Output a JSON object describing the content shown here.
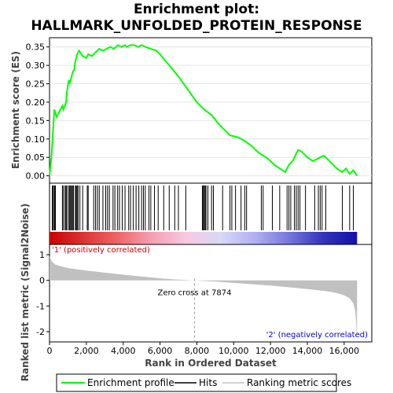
{
  "chart_data": {
    "type": "line",
    "title": "Enrichment plot:",
    "subtitle": "HALLMARK_UNFOLDED_PROTEIN_RESPONSE",
    "top_panel": {
      "ylabel": "Enrichment score (ES)",
      "ylim": [
        -0.02,
        0.375
      ],
      "yticks": [
        "0.00",
        "0.05",
        "0.10",
        "0.15",
        "0.20",
        "0.25",
        "0.30",
        "0.35"
      ],
      "ytick_values": [
        0.0,
        0.05,
        0.1,
        0.15,
        0.2,
        0.25,
        0.3,
        0.35
      ],
      "grid": true,
      "series": [
        {
          "name": "Enrichment profile",
          "color": "#00ff00",
          "x": [
            0,
            120,
            200,
            260,
            300,
            380,
            700,
            750,
            900,
            950,
            1050,
            1100,
            1200,
            1250,
            1350,
            1400,
            1500,
            1600,
            1800,
            2000,
            2100,
            2300,
            2500,
            2700,
            2900,
            3100,
            3300,
            3500,
            3700,
            3900,
            4100,
            4200,
            4400,
            4600,
            4800,
            5000,
            5200,
            5500,
            5800,
            6000,
            6500,
            7000,
            7500,
            8000,
            8400,
            8800,
            9200,
            9600,
            9800,
            10200,
            10600,
            11000,
            11300,
            11600,
            11900,
            12200,
            12500,
            12800,
            13000,
            13200,
            13400,
            13500,
            13700,
            14000,
            14300,
            14500,
            14700,
            14900,
            15100,
            15300,
            15600,
            15900,
            16100,
            16300,
            16500,
            16700
          ],
          "y": [
            0.0,
            0.06,
            0.13,
            0.18,
            0.175,
            0.16,
            0.19,
            0.18,
            0.2,
            0.23,
            0.26,
            0.25,
            0.27,
            0.28,
            0.29,
            0.31,
            0.33,
            0.34,
            0.325,
            0.32,
            0.33,
            0.325,
            0.335,
            0.345,
            0.34,
            0.345,
            0.35,
            0.345,
            0.355,
            0.35,
            0.355,
            0.35,
            0.355,
            0.355,
            0.35,
            0.355,
            0.35,
            0.345,
            0.34,
            0.33,
            0.3,
            0.27,
            0.235,
            0.2,
            0.18,
            0.165,
            0.14,
            0.12,
            0.11,
            0.105,
            0.095,
            0.08,
            0.065,
            0.055,
            0.045,
            0.03,
            0.02,
            0.01,
            0.03,
            0.04,
            0.06,
            0.07,
            0.065,
            0.05,
            0.04,
            0.045,
            0.05,
            0.055,
            0.045,
            0.035,
            0.02,
            0.01,
            0.02,
            0.005,
            0.015,
            0.0
          ]
        }
      ]
    },
    "hits_panel": {
      "legend_name": "Hits",
      "hit_positions": [
        150,
        200,
        260,
        300,
        320,
        700,
        760,
        850,
        900,
        950,
        1050,
        1100,
        1150,
        1200,
        1250,
        1300,
        1400,
        1450,
        1500,
        1550,
        1650,
        1800,
        2050,
        2100,
        2400,
        2500,
        2600,
        2700,
        2900,
        3050,
        3150,
        3250,
        3450,
        3550,
        3700,
        3800,
        3950,
        4100,
        4300,
        4400,
        4550,
        4700,
        4850,
        5000,
        5100,
        5200,
        5400,
        5500,
        5700,
        5900,
        6200,
        6500,
        6800,
        7000,
        7400,
        8300,
        8350,
        8400,
        8450,
        8500,
        8600,
        8800,
        8900,
        9400,
        9800,
        9900,
        10100,
        10400,
        10600,
        10700,
        11500,
        11600,
        12100,
        12500,
        12900,
        13000,
        13100,
        13300,
        13400,
        13500,
        13600,
        13900,
        14400,
        14600,
        14700,
        14800,
        15000,
        15900,
        16300,
        16500
      ],
      "colorbar_stops": [
        "#cc0000",
        "#dd3333",
        "#ee6666",
        "#f4a0b4",
        "#f8c8e0",
        "#d8d8f8",
        "#b0b0f0",
        "#7777dd",
        "#3333bb",
        "#1111aa"
      ],
      "pos_label": "'1' (positively correlated)",
      "neg_label": "'2' (negatively correlated)",
      "pos_color": "#cc0000",
      "neg_color": "#0000cc"
    },
    "metric_panel": {
      "ylabel": "Ranked list metric (Signal2Noise)",
      "ylim": [
        -2.4,
        1.4
      ],
      "yticks": [
        "-2",
        "-1",
        "0",
        "1"
      ],
      "ytick_values": [
        -2,
        -1,
        0,
        1
      ],
      "zero_cross_label": "Zero cross at 7874",
      "zero_cross_x": 7874,
      "fill_color": "#c0c0c0",
      "metric_curve": {
        "x": [
          0,
          50,
          150,
          300,
          600,
          1000,
          2000,
          3000,
          4000,
          5000,
          6000,
          7000,
          7874,
          9000,
          10000,
          11000,
          12000,
          13000,
          14000,
          15000,
          15500,
          16000,
          16300,
          16500,
          16600,
          16650,
          16700
        ],
        "y": [
          0.95,
          0.85,
          0.72,
          0.62,
          0.55,
          0.48,
          0.38,
          0.3,
          0.22,
          0.15,
          0.08,
          0.03,
          0.0,
          -0.05,
          -0.1,
          -0.15,
          -0.2,
          -0.27,
          -0.34,
          -0.42,
          -0.48,
          -0.58,
          -0.7,
          -0.9,
          -1.2,
          -1.6,
          -2.3
        ]
      }
    },
    "xaxis": {
      "label": "Rank in Ordered Dataset",
      "xlim": [
        0,
        17500
      ],
      "xticks": [
        "0",
        "2,000",
        "4,000",
        "6,000",
        "8,000",
        "10,000",
        "12,000",
        "14,000",
        "16,000"
      ],
      "xtick_values": [
        0,
        2000,
        4000,
        6000,
        8000,
        10000,
        12000,
        14000,
        16000
      ]
    },
    "legend": {
      "placement": "bottom",
      "items": [
        {
          "label": "Enrichment profile",
          "color": "#00ff00"
        },
        {
          "label": "Hits",
          "color": "#000000"
        },
        {
          "label": "Ranking metric scores",
          "color": "#c0c0c0"
        }
      ]
    }
  }
}
